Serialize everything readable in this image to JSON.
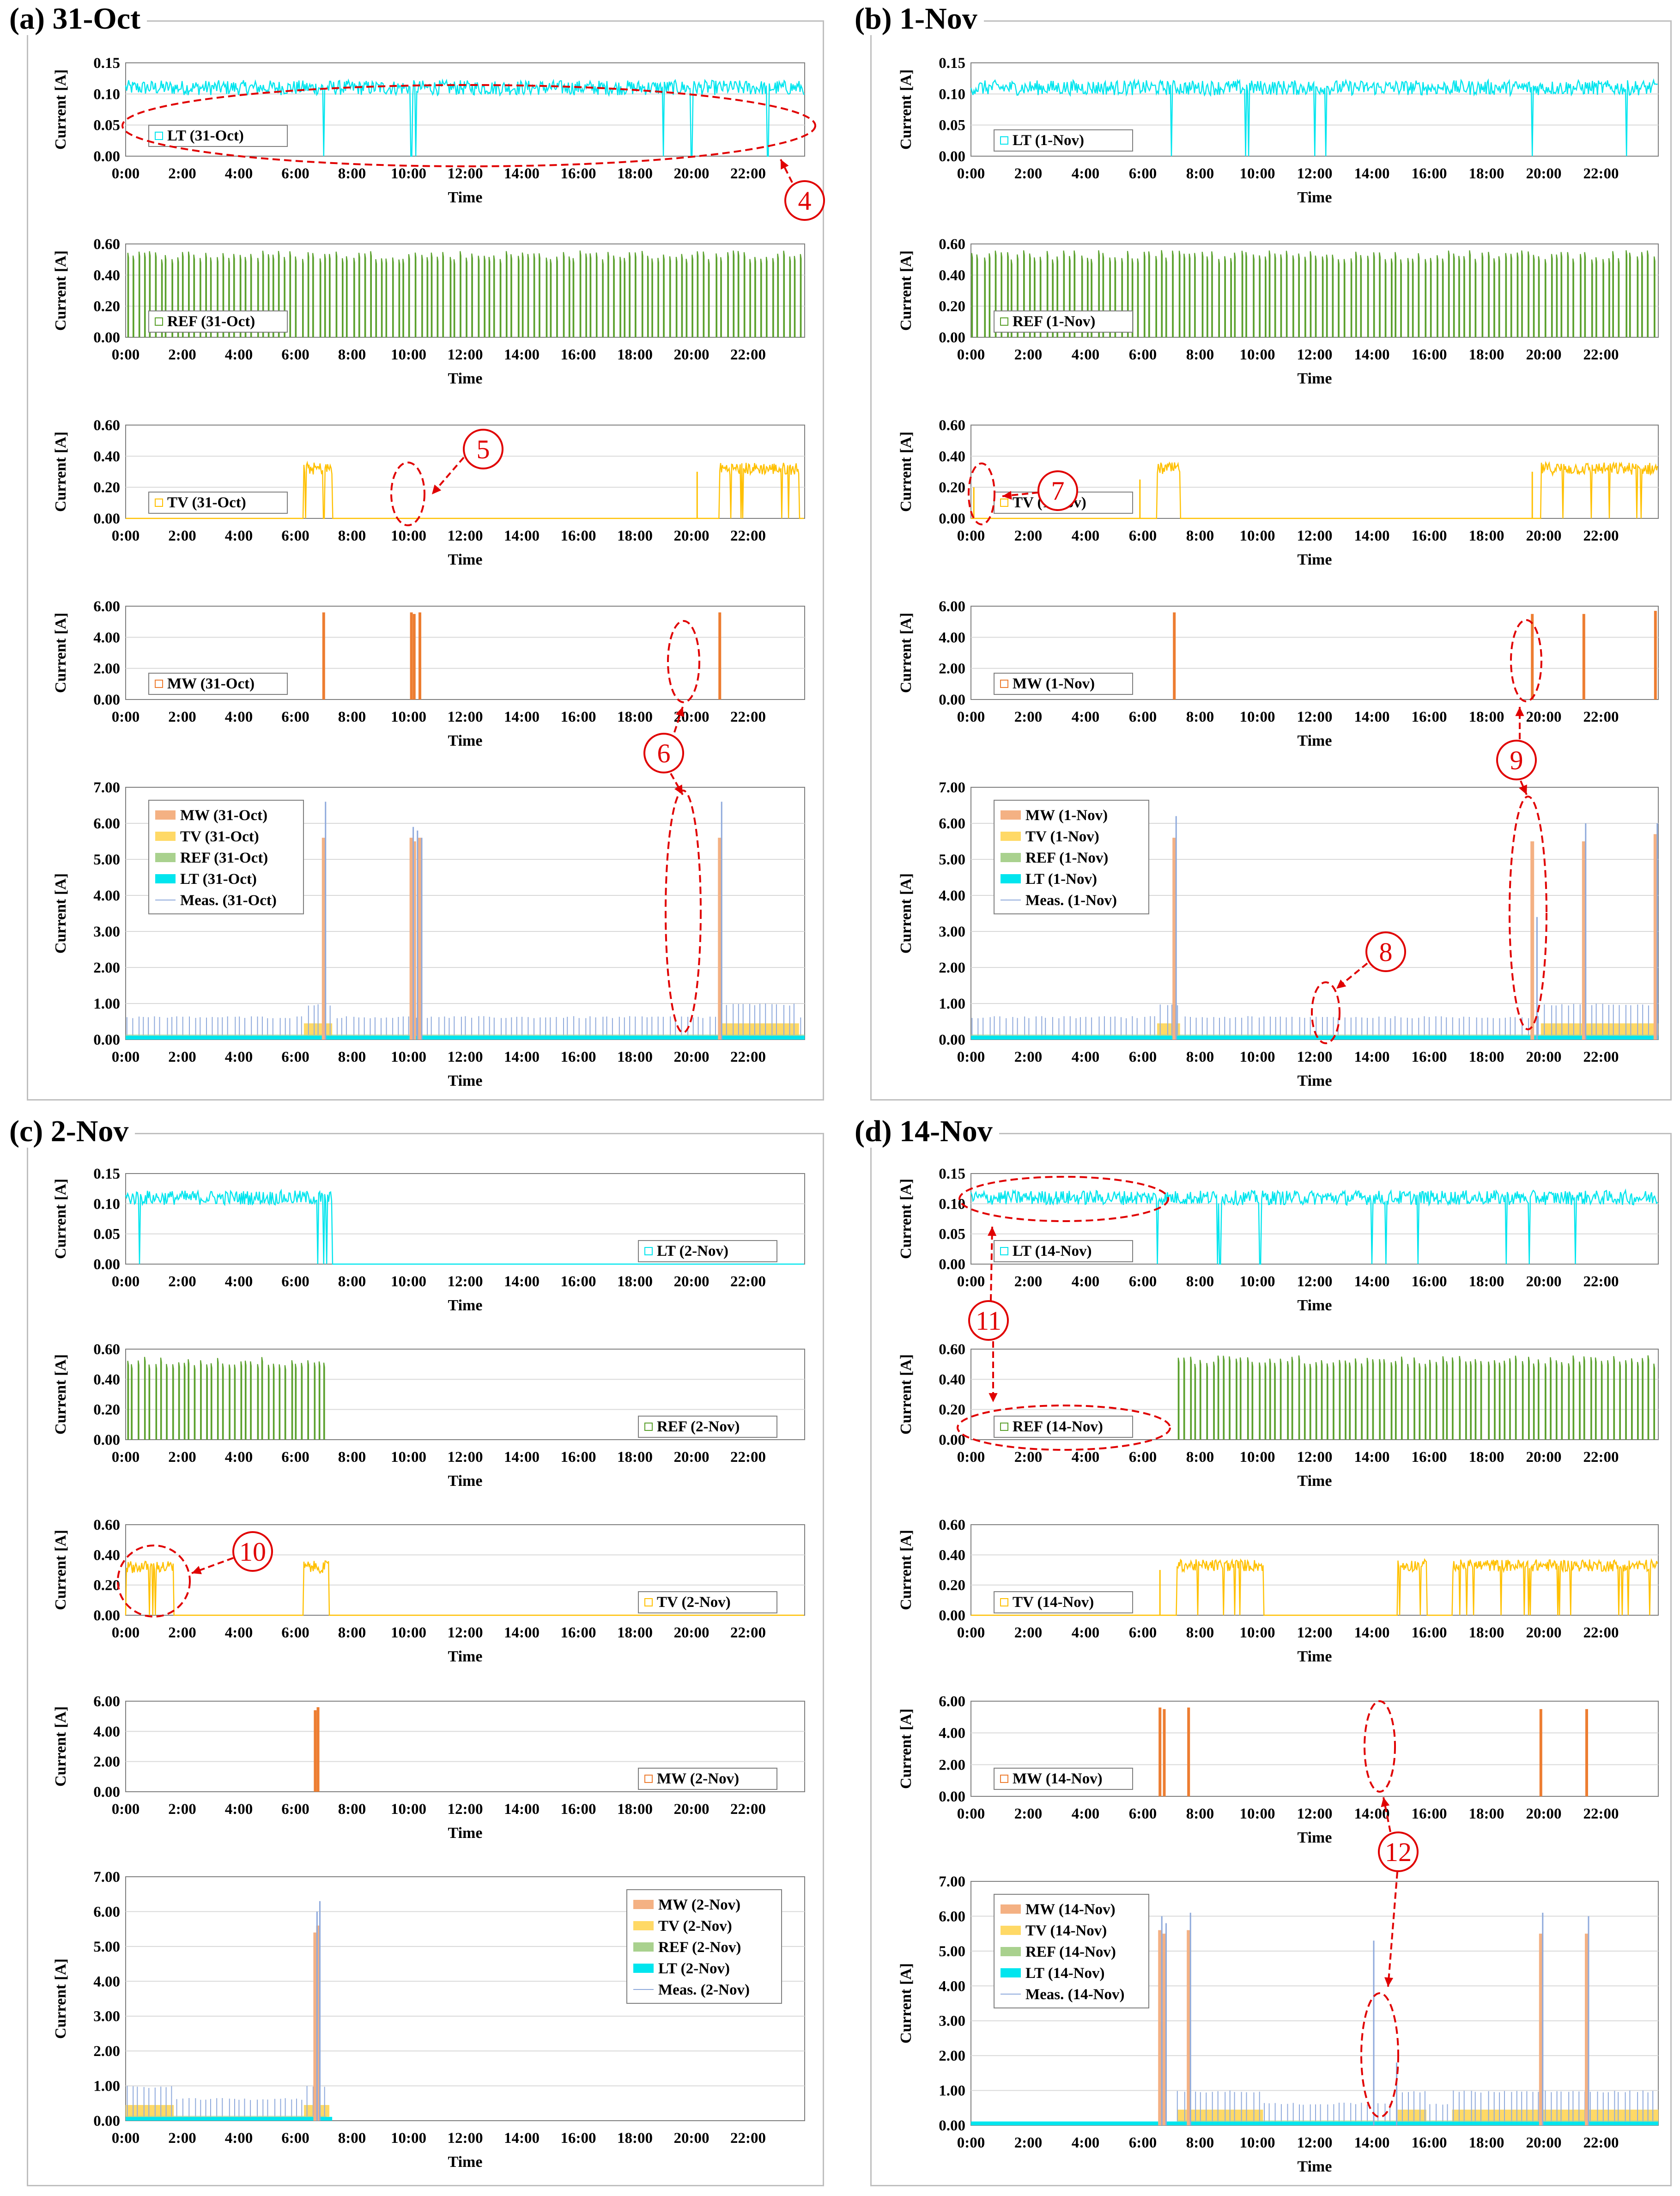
{
  "figure": {
    "x_axis_label": "Time",
    "y_axis_label": "Current [A]",
    "time_ticks": [
      "0:00",
      "2:00",
      "4:00",
      "6:00",
      "8:00",
      "10:00",
      "12:00",
      "14:00",
      "16:00",
      "18:00",
      "20:00",
      "22:00"
    ]
  },
  "colors": {
    "LT": "#00e5ee",
    "REF": "#5aa02c",
    "TV": "#ffc000",
    "MW": "#ed7d31",
    "MW_area": "#f4b183",
    "TV_area": "#ffd966",
    "REF_area": "#a9d18e",
    "LT_area": "#00e5ee",
    "Meas": "#8faadc",
    "annotation": "#e00000",
    "frame": "#bfbfbf",
    "grid": "#d9d9d9"
  },
  "panels": [
    {
      "id": "a",
      "title": "(a) 31-Oct",
      "day": "31-Oct",
      "legend_lt": "LT (31-Oct)",
      "legend_ref": "REF (31-Oct)",
      "legend_tv": "TV (31-Oct)",
      "legend_mw": "MW (31-Oct)",
      "legend_meas": "Meas. (31-Oct)"
    },
    {
      "id": "b",
      "title": "(b) 1-Nov",
      "day": "1-Nov",
      "legend_lt": "LT (1-Nov)",
      "legend_ref": "REF (1-Nov)",
      "legend_tv": "TV (1-Nov)",
      "legend_mw": "MW (1-Nov)",
      "legend_meas": "Meas. (1-Nov)"
    },
    {
      "id": "c",
      "title": "(c) 2-Nov",
      "day": "2-Nov",
      "legend_lt": "LT (2-Nov)",
      "legend_ref": "REF (2-Nov)",
      "legend_tv": "TV (2-Nov)",
      "legend_mw": "MW (2-Nov)",
      "legend_meas": "Meas. (2-Nov)"
    },
    {
      "id": "d",
      "title": "(d) 14-Nov",
      "day": "14-Nov",
      "legend_lt": "LT (14-Nov)",
      "legend_ref": "REF (14-Nov)",
      "legend_tv": "TV (14-Nov)",
      "legend_mw": "MW (14-Nov)",
      "legend_meas": "Meas. (14-Nov)"
    }
  ],
  "annotations": [
    "4",
    "5",
    "6",
    "7",
    "8",
    "9",
    "10",
    "11",
    "12"
  ],
  "chart_data": [
    {
      "type": "line",
      "panel": "a",
      "series": "LT (31-Oct)",
      "ylabel": "Current [A]",
      "xlabel": "Time",
      "y_ticks": [
        "0.00",
        "0.05",
        "0.10",
        "0.15"
      ],
      "ylim": [
        0,
        0.15
      ],
      "xlim": [
        0,
        24
      ],
      "level": 0.11,
      "noise": 0.012,
      "active": [
        [
          0,
          24
        ]
      ],
      "dropouts": [
        7.0,
        10.1,
        10.25,
        19.0,
        20.0,
        22.7
      ]
    },
    {
      "type": "line",
      "panel": "a",
      "series": "REF (31-Oct)",
      "ylabel": "Current [A]",
      "xlabel": "Time",
      "y_ticks": [
        "0.00",
        "0.20",
        "0.40",
        "0.60"
      ],
      "ylim": [
        0,
        0.6
      ],
      "xlim": [
        0,
        24
      ],
      "level": 0.53,
      "cycle_hours": 0.2,
      "active": [
        [
          0,
          24
        ]
      ]
    },
    {
      "type": "line",
      "panel": "a",
      "series": "TV (31-Oct)",
      "ylabel": "Current [A]",
      "xlabel": "Time",
      "y_ticks": [
        "0.00",
        "0.20",
        "0.40",
        "0.60"
      ],
      "ylim": [
        0,
        0.6
      ],
      "xlim": [
        0,
        24
      ],
      "level": 0.32,
      "active": [
        [
          6.3,
          7.3
        ],
        [
          21.0,
          23.8
        ]
      ],
      "spikes": [
        [
          20.2,
          0.3
        ]
      ]
    },
    {
      "type": "bar",
      "panel": "a",
      "series": "MW (31-Oct)",
      "ylabel": "Current [A]",
      "xlabel": "Time",
      "y_ticks": [
        "0.00",
        "2.00",
        "4.00",
        "6.00"
      ],
      "ylim": [
        0,
        6
      ],
      "xlim": [
        0,
        24
      ],
      "events": [
        [
          7.0,
          5.6
        ],
        [
          10.1,
          5.6
        ],
        [
          10.2,
          5.5
        ],
        [
          10.4,
          5.6
        ],
        [
          21.0,
          5.6
        ]
      ]
    },
    {
      "type": "area",
      "panel": "a",
      "series": [
        "MW (31-Oct)",
        "TV (31-Oct)",
        "REF (31-Oct)",
        "LT (31-Oct)",
        "Meas. (31-Oct)"
      ],
      "ylabel": "Current [A]",
      "xlabel": "Time",
      "y_ticks": [
        "0.00",
        "1.00",
        "2.00",
        "3.00",
        "4.00",
        "5.00",
        "6.00",
        "7.00"
      ],
      "ylim": [
        0,
        7
      ],
      "xlim": [
        0,
        24
      ],
      "meas_peaks": [
        [
          7.0,
          6.6
        ],
        [
          10.1,
          5.9
        ],
        [
          10.25,
          5.8
        ],
        [
          10.4,
          5.6
        ],
        [
          21.0,
          6.6
        ]
      ]
    },
    {
      "type": "line",
      "panel": "b",
      "series": "LT (1-Nov)",
      "ylabel": "Current [A]",
      "xlabel": "Time",
      "y_ticks": [
        "0.00",
        "0.05",
        "0.10",
        "0.15"
      ],
      "ylim": [
        0,
        0.15
      ],
      "xlim": [
        0,
        24
      ],
      "level": 0.11,
      "noise": 0.012,
      "active": [
        [
          0,
          24
        ]
      ],
      "dropouts": [
        7.0,
        9.6,
        9.7,
        12.0,
        12.4,
        19.6,
        22.9
      ]
    },
    {
      "type": "line",
      "panel": "b",
      "series": "REF (1-Nov)",
      "ylabel": "Current [A]",
      "xlabel": "Time",
      "y_ticks": [
        "0.00",
        "0.20",
        "0.40",
        "0.60"
      ],
      "ylim": [
        0,
        0.6
      ],
      "xlim": [
        0,
        24
      ],
      "level": 0.53,
      "cycle_hours": 0.2,
      "active": [
        [
          0,
          24
        ]
      ]
    },
    {
      "type": "line",
      "panel": "b",
      "series": "TV (1-Nov)",
      "ylabel": "Current [A]",
      "xlabel": "Time",
      "y_ticks": [
        "0.00",
        "0.20",
        "0.40",
        "0.60"
      ],
      "ylim": [
        0,
        0.6
      ],
      "xlim": [
        0,
        24
      ],
      "level": 0.32,
      "active": [
        [
          6.5,
          7.3
        ],
        [
          19.9,
          24.0
        ]
      ],
      "spikes": [
        [
          0.1,
          0.2
        ],
        [
          5.9,
          0.25
        ],
        [
          19.6,
          0.3
        ]
      ]
    },
    {
      "type": "bar",
      "panel": "b",
      "series": "MW (1-Nov)",
      "ylabel": "Current [A]",
      "xlabel": "Time",
      "y_ticks": [
        "0.00",
        "2.00",
        "4.00",
        "6.00"
      ],
      "ylim": [
        0,
        6
      ],
      "xlim": [
        0,
        24
      ],
      "events": [
        [
          7.1,
          5.6
        ],
        [
          19.6,
          5.5
        ],
        [
          21.4,
          5.5
        ],
        [
          23.9,
          5.7
        ]
      ]
    },
    {
      "type": "area",
      "panel": "b",
      "series": [
        "MW (1-Nov)",
        "TV (1-Nov)",
        "REF (1-Nov)",
        "LT (1-Nov)",
        "Meas. (1-Nov)"
      ],
      "ylabel": "Current [A]",
      "xlabel": "Time",
      "y_ticks": [
        "0.00",
        "1.00",
        "2.00",
        "3.00",
        "4.00",
        "5.00",
        "6.00",
        "7.00"
      ],
      "ylim": [
        0,
        7
      ],
      "xlim": [
        0,
        24
      ],
      "meas_peaks": [
        [
          7.1,
          6.2
        ],
        [
          19.7,
          3.4
        ],
        [
          21.4,
          6.0
        ],
        [
          23.9,
          6.0
        ]
      ]
    },
    {
      "type": "line",
      "panel": "c",
      "series": "LT (2-Nov)",
      "ylabel": "Current [A]",
      "xlabel": "Time",
      "y_ticks": [
        "0.00",
        "0.05",
        "0.10",
        "0.15"
      ],
      "ylim": [
        0,
        0.15
      ],
      "xlim": [
        0,
        24
      ],
      "level": 0.11,
      "noise": 0.012,
      "active": [
        [
          0,
          7.3
        ]
      ],
      "dropouts": [
        0.5,
        6.8,
        7.0,
        7.1
      ]
    },
    {
      "type": "line",
      "panel": "c",
      "series": "REF (2-Nov)",
      "ylabel": "Current [A]",
      "xlabel": "Time",
      "y_ticks": [
        "0.00",
        "0.20",
        "0.40",
        "0.60"
      ],
      "ylim": [
        0,
        0.6
      ],
      "xlim": [
        0,
        24
      ],
      "level": 0.52,
      "cycle_hours": 0.2,
      "active": [
        [
          0,
          7.1
        ]
      ]
    },
    {
      "type": "line",
      "panel": "c",
      "series": "TV (2-Nov)",
      "ylabel": "Current [A]",
      "xlabel": "Time",
      "y_ticks": [
        "0.00",
        "0.20",
        "0.40",
        "0.60"
      ],
      "ylim": [
        0,
        0.6
      ],
      "xlim": [
        0,
        24
      ],
      "level": 0.32,
      "active": [
        [
          0,
          1.7
        ],
        [
          6.3,
          7.2
        ]
      ],
      "spikes": []
    },
    {
      "type": "bar",
      "panel": "c",
      "series": "MW (2-Nov)",
      "ylabel": "Current [A]",
      "xlabel": "Time",
      "y_ticks": [
        "0.00",
        "2.00",
        "4.00",
        "6.00"
      ],
      "ylim": [
        0,
        6
      ],
      "xlim": [
        0,
        24
      ],
      "events": [
        [
          6.7,
          5.4
        ],
        [
          6.8,
          5.6
        ]
      ]
    },
    {
      "type": "area",
      "panel": "c",
      "series": [
        "MW (2-Nov)",
        "TV (2-Nov)",
        "REF (2-Nov)",
        "LT (2-Nov)",
        "Meas. (2-Nov)"
      ],
      "ylabel": "Current [A]",
      "xlabel": "Time",
      "y_ticks": [
        "0.00",
        "1.00",
        "2.00",
        "3.00",
        "4.00",
        "5.00",
        "6.00",
        "7.00"
      ],
      "ylim": [
        0,
        7
      ],
      "xlim": [
        0,
        24
      ],
      "meas_peaks": [
        [
          6.7,
          6.0
        ],
        [
          6.8,
          6.3
        ]
      ]
    },
    {
      "type": "line",
      "panel": "d",
      "series": "LT (14-Nov)",
      "ylabel": "Current [A]",
      "xlabel": "Time",
      "y_ticks": [
        "0.00",
        "0.05",
        "0.10",
        "0.15"
      ],
      "ylim": [
        0,
        0.15
      ],
      "xlim": [
        0,
        24
      ],
      "level": 0.11,
      "noise": 0.012,
      "active": [
        [
          0,
          24
        ]
      ],
      "dropouts": [
        6.5,
        8.6,
        8.7,
        10.1,
        14.0,
        14.5,
        15.6,
        18.7,
        19.5,
        21.1
      ]
    },
    {
      "type": "line",
      "panel": "d",
      "series": "REF (14-Nov)",
      "ylabel": "Current [A]",
      "xlabel": "Time",
      "y_ticks": [
        "0.00",
        "0.20",
        "0.40",
        "0.60"
      ],
      "ylim": [
        0,
        0.6
      ],
      "xlim": [
        0,
        24
      ],
      "level": 0.53,
      "cycle_hours": 0.2,
      "active": [
        [
          7.2,
          24
        ]
      ]
    },
    {
      "type": "line",
      "panel": "d",
      "series": "TV (14-Nov)",
      "ylabel": "Current [A]",
      "xlabel": "Time",
      "y_ticks": [
        "0.00",
        "0.20",
        "0.40",
        "0.60"
      ],
      "ylim": [
        0,
        0.6
      ],
      "xlim": [
        0,
        24
      ],
      "level": 0.33,
      "active": [
        [
          7.2,
          10.2
        ],
        [
          14.9,
          15.9
        ],
        [
          16.8,
          24
        ]
      ],
      "spikes": [
        [
          6.6,
          0.3
        ]
      ]
    },
    {
      "type": "bar",
      "panel": "d",
      "series": "MW (14-Nov)",
      "ylabel": "Current [A]",
      "xlabel": "Time",
      "y_ticks": [
        "0.00",
        "2.00",
        "4.00",
        "6.00"
      ],
      "ylim": [
        0,
        6
      ],
      "xlim": [
        0,
        24
      ],
      "events": [
        [
          6.6,
          5.6
        ],
        [
          6.75,
          5.5
        ],
        [
          7.6,
          5.6
        ],
        [
          19.9,
          5.5
        ],
        [
          21.5,
          5.5
        ]
      ]
    },
    {
      "type": "area",
      "panel": "d",
      "series": [
        "MW (14-Nov)",
        "TV (14-Nov)",
        "REF (14-Nov)",
        "LT (14-Nov)",
        "Meas. (14-Nov)"
      ],
      "ylabel": "Current [A]",
      "xlabel": "Time",
      "y_ticks": [
        "0.00",
        "1.00",
        "2.00",
        "3.00",
        "4.00",
        "5.00",
        "6.00",
        "7.00"
      ],
      "ylim": [
        0,
        7
      ],
      "xlim": [
        0,
        24
      ],
      "meas_peaks": [
        [
          6.6,
          6.0
        ],
        [
          6.75,
          5.8
        ],
        [
          7.6,
          6.1
        ],
        [
          14.0,
          5.3
        ],
        [
          14.8,
          1.8
        ],
        [
          19.9,
          6.1
        ],
        [
          21.5,
          6.0
        ]
      ]
    }
  ]
}
